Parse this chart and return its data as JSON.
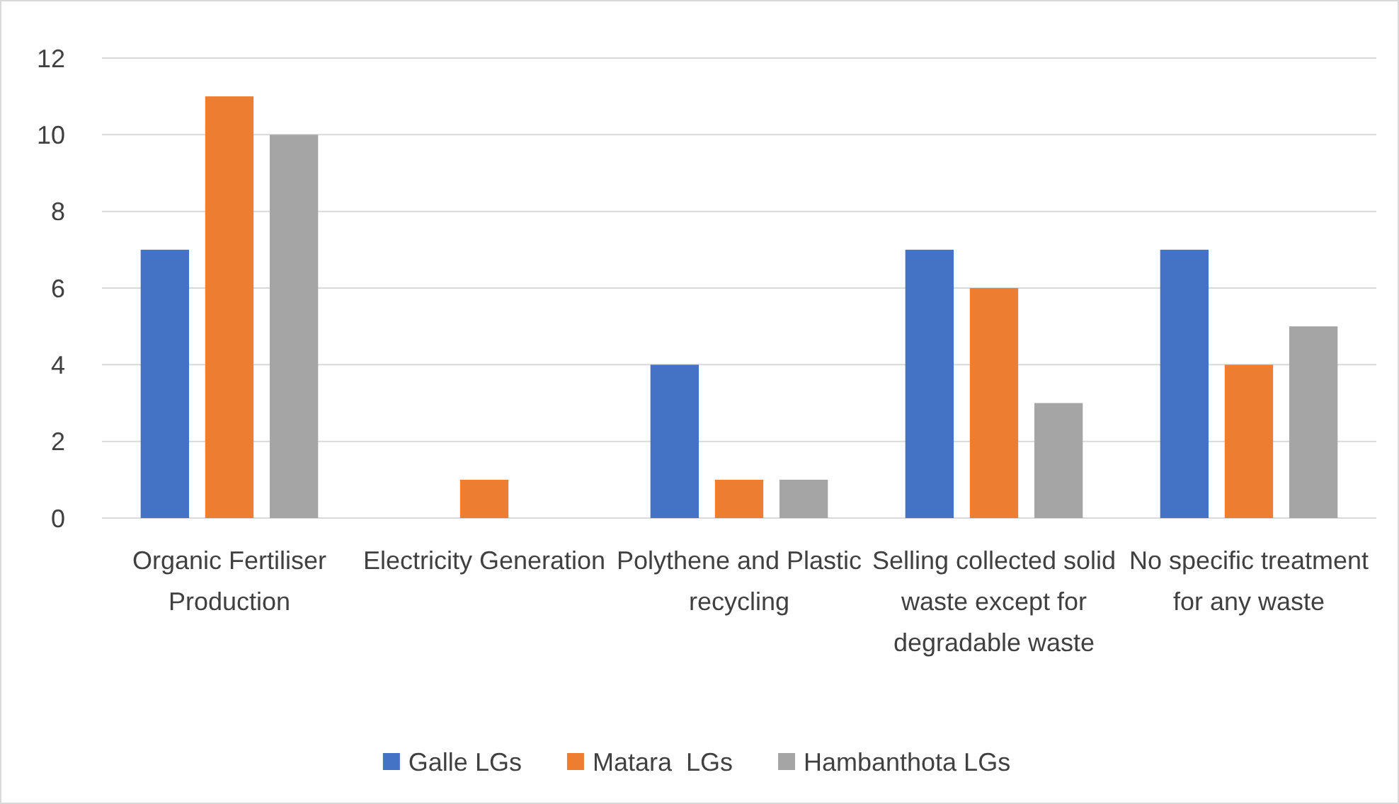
{
  "chart_data": {
    "type": "bar",
    "categories": [
      "Organic Fertiliser Production",
      "Electricity Generation",
      "Polythene and Plastic recycling",
      "Selling collected solid waste except for degradable waste",
      "No specific treatment for any waste"
    ],
    "series": [
      {
        "name": "Galle LGs",
        "color": "#4472c4",
        "values": [
          7,
          0,
          4,
          7,
          7
        ]
      },
      {
        "name": "Matara  LGs",
        "color": "#ed7d31",
        "values": [
          11,
          1,
          1,
          6,
          4
        ]
      },
      {
        "name": "Hambanthota LGs",
        "color": "#a5a5a5",
        "values": [
          10,
          0,
          1,
          3,
          5
        ]
      }
    ],
    "ylim": [
      0,
      12
    ],
    "yticks": [
      0,
      2,
      4,
      6,
      8,
      10,
      12
    ],
    "grid": "y",
    "legend": "bottom"
  }
}
